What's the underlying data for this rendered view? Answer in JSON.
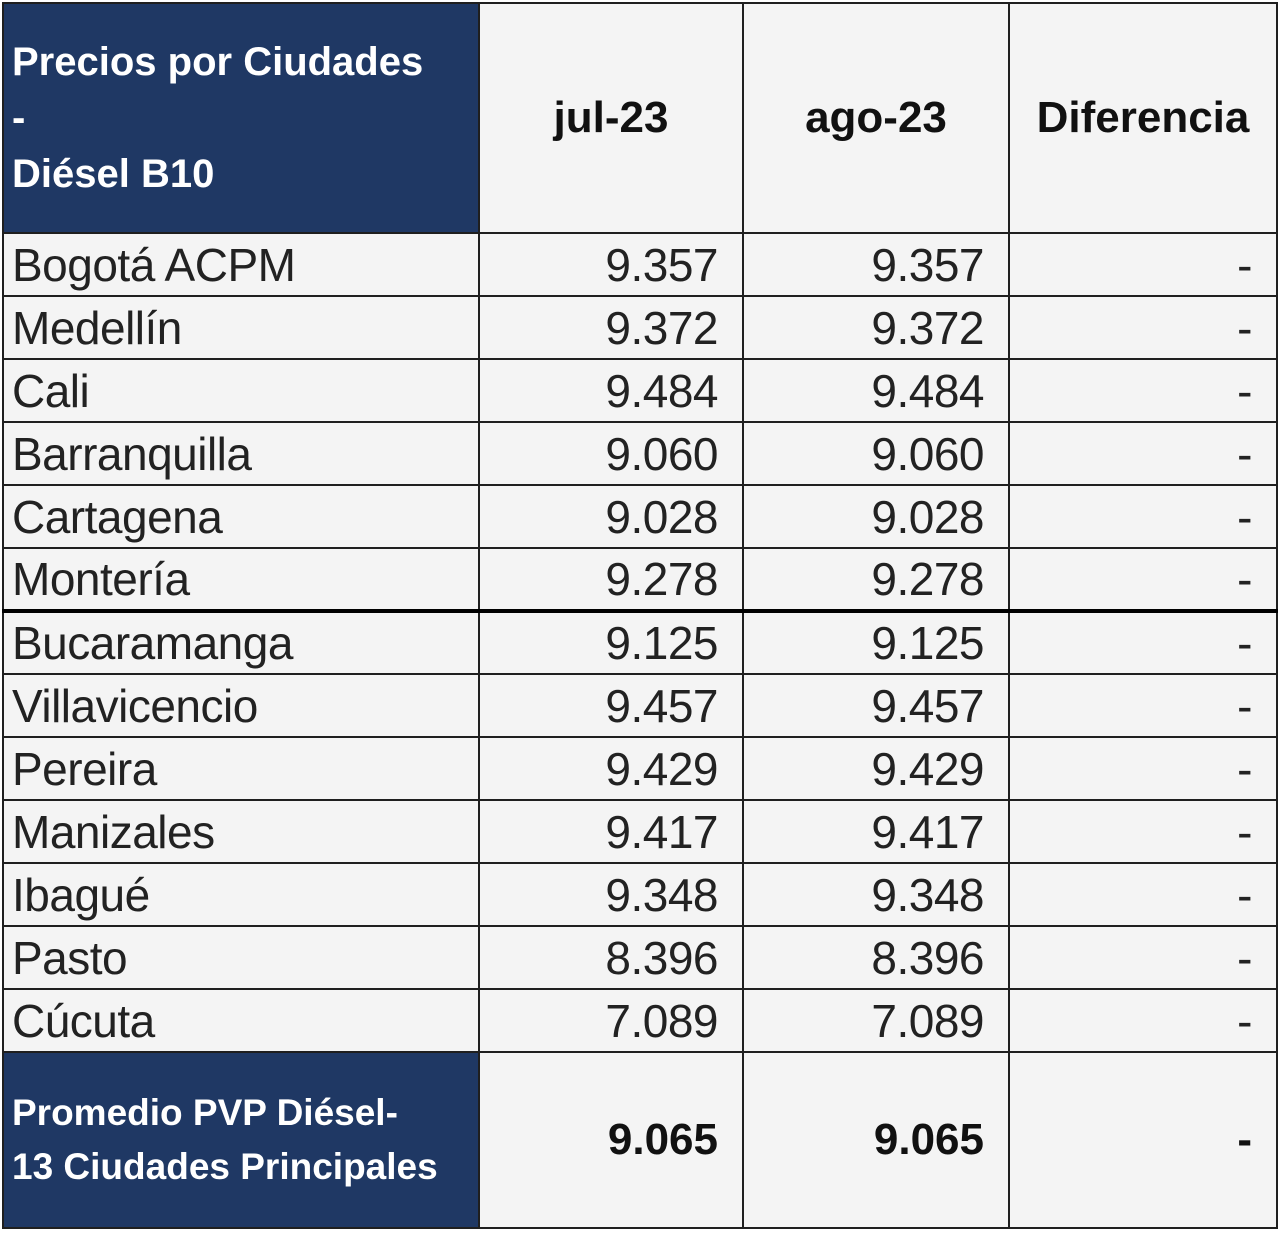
{
  "table": {
    "header": {
      "title": "Precios por Ciudades\n-\nDiésel B10",
      "jul": "jul-23",
      "ago": "ago-23",
      "diferencia": "Diferencia"
    },
    "rows": [
      {
        "city": "Bogotá ACPM",
        "jul": "9.357",
        "ago": "9.357",
        "dif": "-"
      },
      {
        "city": "Medellín",
        "jul": "9.372",
        "ago": "9.372",
        "dif": "-"
      },
      {
        "city": "Cali",
        "jul": "9.484",
        "ago": "9.484",
        "dif": "-"
      },
      {
        "city": "Barranquilla",
        "jul": "9.060",
        "ago": "9.060",
        "dif": "-"
      },
      {
        "city": "Cartagena",
        "jul": "9.028",
        "ago": "9.028",
        "dif": "-"
      },
      {
        "city": "Montería",
        "jul": "9.278",
        "ago": "9.278",
        "dif": "-"
      },
      {
        "city": "Bucaramanga",
        "jul": "9.125",
        "ago": "9.125",
        "dif": "-"
      },
      {
        "city": "Villavicencio",
        "jul": "9.457",
        "ago": "9.457",
        "dif": "-"
      },
      {
        "city": "Pereira",
        "jul": "9.429",
        "ago": "9.429",
        "dif": "-"
      },
      {
        "city": "Manizales",
        "jul": "9.417",
        "ago": "9.417",
        "dif": "-"
      },
      {
        "city": "Ibagué",
        "jul": "9.348",
        "ago": "9.348",
        "dif": "-"
      },
      {
        "city": "Pasto",
        "jul": "8.396",
        "ago": "8.396",
        "dif": "-"
      },
      {
        "city": "Cúcuta",
        "jul": "7.089",
        "ago": "7.089",
        "dif": "-"
      }
    ],
    "footer": {
      "label": "Promedio PVP Diésel-\n13 Ciudades Principales",
      "jul": "9.065",
      "ago": "9.065",
      "dif": "-"
    }
  },
  "colors": {
    "header_fill": "#1f3864",
    "cell_fill": "#f4f4f4",
    "border": "#1f1f1f"
  }
}
